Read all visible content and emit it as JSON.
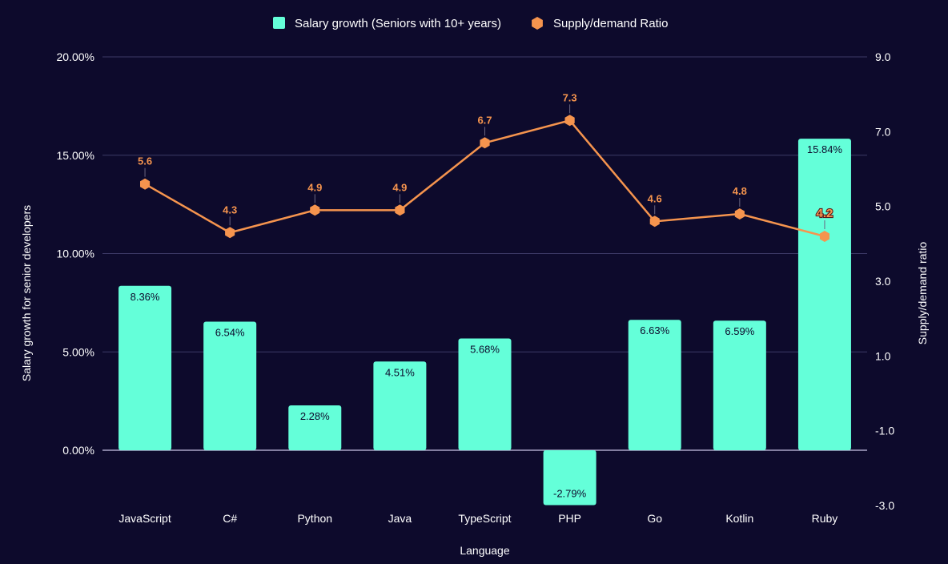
{
  "chart_data": {
    "type": "bar",
    "combo": "bar+line",
    "categories": [
      "JavaScript",
      "C#",
      "Python",
      "Java",
      "TypeScript",
      "PHP",
      "Go",
      "Kotlin",
      "Ruby"
    ],
    "series": [
      {
        "name": "Salary growth (Seniors with 10+ years)",
        "type": "bar",
        "axis": "left",
        "color": "#64ffd9",
        "values": [
          8.36,
          6.54,
          2.28,
          4.51,
          5.68,
          -2.79,
          6.63,
          6.59,
          15.84
        ],
        "labels": [
          "8.36%",
          "6.54%",
          "2.28%",
          "4.51%",
          "5.68%",
          "-2.79%",
          "6.63%",
          "6.59%",
          "15.84%"
        ]
      },
      {
        "name": "Supply/demand Ratio",
        "type": "line",
        "axis": "right",
        "color": "#f5944e",
        "values": [
          5.6,
          4.3,
          4.9,
          4.9,
          6.7,
          7.3,
          4.6,
          4.8,
          4.2
        ],
        "labels": [
          "5.6",
          "4.3",
          "4.9",
          "4.9",
          "6.7",
          "7.3",
          "4.6",
          "4.8",
          "4.2"
        ]
      }
    ],
    "xlabel": "Language",
    "ylabel": "Salary growth for senior developers",
    "y2label": "Supply/demand ratio",
    "ylim": [
      -2.79,
      20
    ],
    "y2lim": [
      -3,
      9
    ],
    "yticks": [
      0,
      5,
      10,
      15,
      20
    ],
    "yticklabels": [
      "0.00%",
      "5.00%",
      "10.00%",
      "15.00%",
      "20.00%"
    ],
    "y2ticks": [
      -3,
      -1,
      1,
      3,
      5,
      7,
      9
    ],
    "y2ticklabels": [
      "-3.0",
      "-1.0",
      "1.0",
      "3.0",
      "5.0",
      "7.0",
      "9.0"
    ],
    "legend_position": "top-center",
    "grid": true
  }
}
